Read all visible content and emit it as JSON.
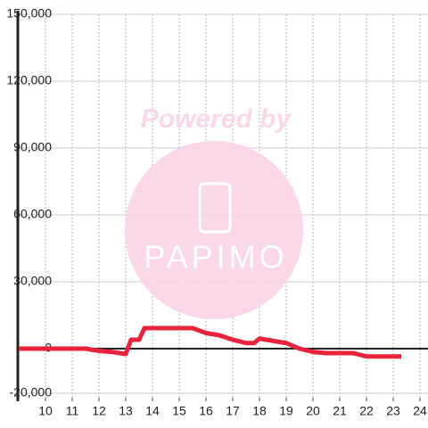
{
  "chart_data": {
    "type": "line",
    "ylim": [
      -20000,
      150000
    ],
    "yticks": [
      {
        "value": -20000,
        "label": "-20,000"
      },
      0,
      {
        "value": 30000,
        "label": "30,000"
      },
      {
        "value": 60000,
        "label": "60,000"
      },
      {
        "value": 90000,
        "label": "90,000"
      },
      {
        "value": 120000,
        "label": "120,000"
      },
      {
        "value": 150000,
        "label": "150,000"
      }
    ],
    "xlim": [
      9,
      24.3
    ],
    "xticks": [
      10,
      11,
      12,
      13,
      14,
      15,
      16,
      17,
      18,
      19,
      20,
      21,
      22,
      23,
      24
    ],
    "grid": true,
    "x": [
      9,
      11.5,
      12,
      12.5,
      13,
      13.2,
      13.5,
      13.7,
      15.5,
      16,
      16.5,
      17,
      17.5,
      17.8,
      18,
      18.5,
      19,
      19.5,
      20,
      20.5,
      21.5,
      22,
      23.3
    ],
    "series": [
      {
        "color": "#e8243c",
        "values": [
          0,
          0,
          -1000,
          -1500,
          -2400,
          4000,
          4000,
          9200,
          9200,
          7000,
          6000,
          4000,
          2500,
          2500,
          4500,
          3500,
          2500,
          0,
          -1500,
          -2000,
          -2000,
          -3500,
          -3500
        ]
      }
    ],
    "watermark": {
      "text": "Powered by",
      "logo": "PAPIMO"
    }
  }
}
